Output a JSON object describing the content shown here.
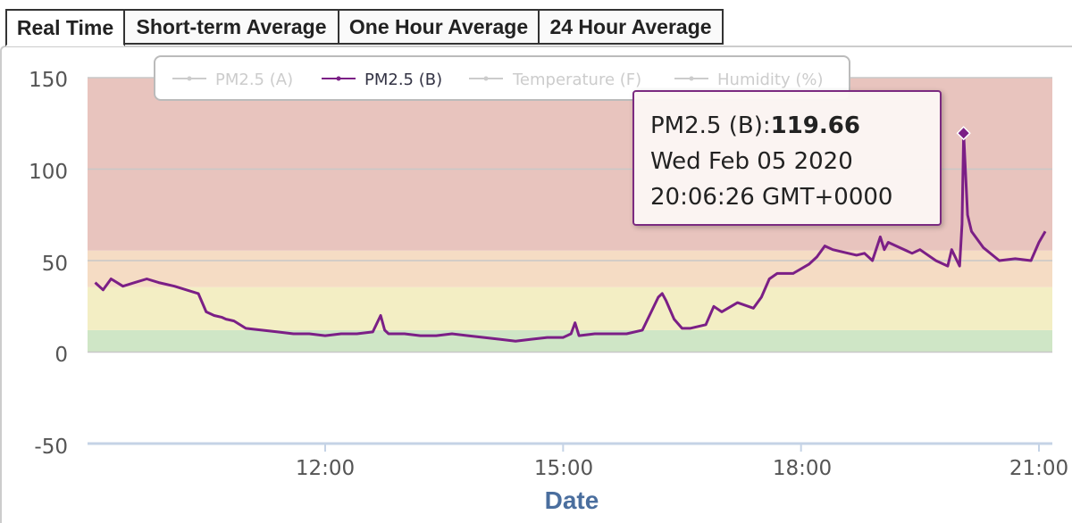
{
  "tabs": [
    {
      "label": "Real Time",
      "active": true
    },
    {
      "label": "Short-term Average",
      "active": false
    },
    {
      "label": "One Hour Average",
      "active": false
    },
    {
      "label": "24 Hour Average",
      "active": false
    }
  ],
  "legend": {
    "items": [
      {
        "label": "PM2.5 (A)",
        "active": false,
        "color": "#cccccc"
      },
      {
        "label": "PM2.5 (B)",
        "active": true,
        "color": "#7b1f86"
      },
      {
        "label": "Temperature (F)",
        "active": false,
        "color": "#cccccc"
      },
      {
        "label": "Humidity (%)",
        "active": false,
        "color": "#cccccc"
      }
    ]
  },
  "tooltip": {
    "series": "PM2.5 (B):",
    "value": "119.66",
    "date_line": "Wed Feb 05 2020",
    "time_line": "20:06:26 GMT+0000"
  },
  "chart_data": {
    "type": "line",
    "xlabel": "Date",
    "ylabel": "",
    "ylim": [
      -50,
      150
    ],
    "xlim_hours": [
      9.1,
      21.1
    ],
    "y_ticks": [
      "150",
      "100",
      "50",
      "0",
      "-50"
    ],
    "x_ticks": [
      "12:00",
      "15:00",
      "18:00",
      "21:00"
    ],
    "grid": true,
    "legend_position": "top",
    "bands": [
      {
        "from": 0,
        "to": 12,
        "color": "#cfe6c6"
      },
      {
        "from": 12,
        "to": 35.5,
        "color": "#f3eec4"
      },
      {
        "from": 35.5,
        "to": 55.5,
        "color": "#f5dcc4"
      },
      {
        "from": 55.5,
        "to": 150,
        "color": "#e8c4be"
      }
    ],
    "series": [
      {
        "name": "PM2.5 (B)",
        "color": "#7b1f86",
        "x_hours": [
          9.1,
          9.2,
          9.3,
          9.45,
          9.6,
          9.75,
          9.9,
          10.0,
          10.1,
          10.25,
          10.4,
          10.5,
          10.6,
          10.7,
          10.75,
          10.85,
          11.0,
          11.2,
          11.4,
          11.6,
          11.8,
          12.0,
          12.2,
          12.4,
          12.6,
          12.7,
          12.75,
          12.8,
          13.0,
          13.2,
          13.4,
          13.6,
          13.8,
          14.0,
          14.2,
          14.4,
          14.6,
          14.8,
          15.0,
          15.1,
          15.15,
          15.2,
          15.4,
          15.6,
          15.8,
          16.0,
          16.1,
          16.2,
          16.25,
          16.3,
          16.4,
          16.5,
          16.6,
          16.8,
          16.9,
          17.0,
          17.2,
          17.4,
          17.5,
          17.6,
          17.7,
          17.9,
          18.1,
          18.2,
          18.3,
          18.4,
          18.5,
          18.7,
          18.8,
          18.9,
          19.0,
          19.05,
          19.1,
          19.2,
          19.4,
          19.5,
          19.7,
          19.85,
          19.9,
          20.0,
          20.03,
          20.05,
          20.1,
          20.15,
          20.3,
          20.5,
          20.7,
          20.9,
          21.0,
          21.08
        ],
        "values": [
          38,
          34,
          40,
          36,
          38,
          40,
          38,
          37,
          36,
          34,
          32,
          22,
          20,
          19,
          18,
          17,
          13,
          12,
          11,
          10,
          10,
          9,
          10,
          10,
          11,
          20,
          12,
          10,
          10,
          9,
          9,
          10,
          9,
          8,
          7,
          6,
          7,
          8,
          8,
          10,
          16,
          9,
          10,
          10,
          10,
          12,
          21,
          30,
          32,
          28,
          18,
          13,
          13,
          15,
          25,
          22,
          27,
          24,
          30,
          40,
          43,
          43,
          48,
          52,
          58,
          56,
          55,
          53,
          54,
          50,
          63,
          56,
          60,
          58,
          54,
          56,
          50,
          47,
          56,
          47,
          70,
          119.66,
          75,
          66,
          57,
          50,
          51,
          50,
          60,
          66
        ]
      }
    ]
  }
}
